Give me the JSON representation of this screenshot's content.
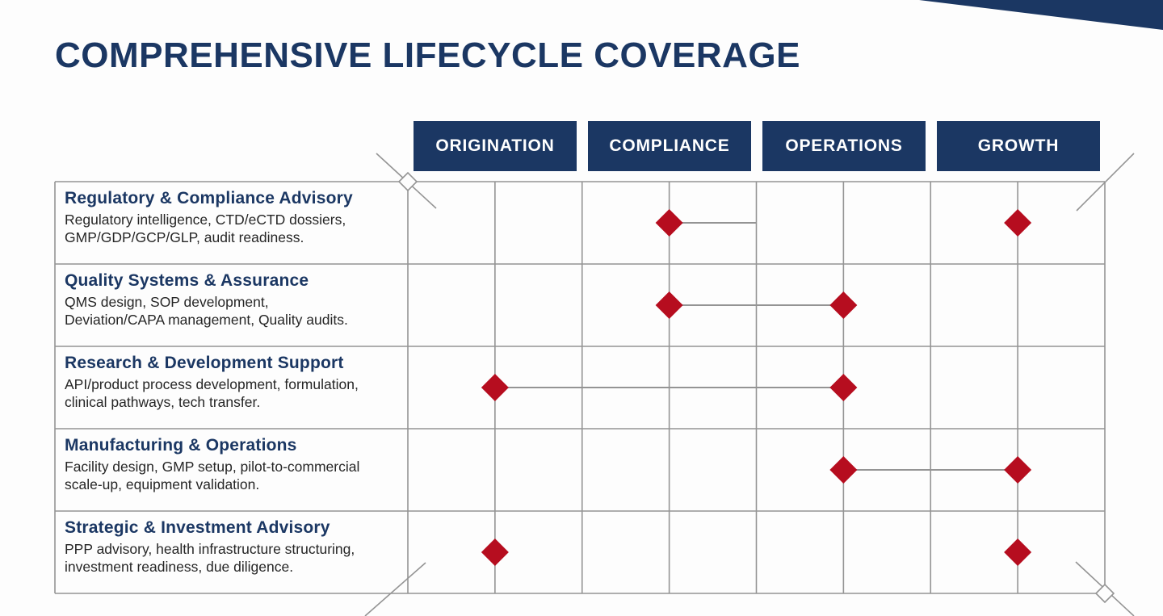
{
  "title": "COMPREHENSIVE LIFECYCLE COVERAGE",
  "columns": [
    "ORIGINATION",
    "COMPLIANCE",
    "OPERATIONS",
    "GROWTH"
  ],
  "rows": [
    {
      "title": "Regulatory & Compliance Advisory",
      "description": "Regulatory intelligence, CTD/eCTD dossiers,\nGMP/GDP/GCP/GLP, audit readiness.",
      "markers": [
        1,
        3
      ]
    },
    {
      "title": "Quality Systems & Assurance",
      "description": "QMS design, SOP development,\nDeviation/CAPA management, Quality audits.",
      "markers": [
        1,
        2
      ]
    },
    {
      "title": "Research & Development Support",
      "description": "API/product process development, formulation,\nclinical pathways, tech transfer.",
      "markers": [
        0,
        2
      ]
    },
    {
      "title": "Manufacturing & Operations",
      "description": "Facility design, GMP setup, pilot-to-commercial\nscale-up, equipment validation.",
      "markers": [
        2,
        3
      ]
    },
    {
      "title": "Strategic & Investment Advisory",
      "description": "PPP advisory, health infrastructure structuring,\ninvestment readiness, due diligence.",
      "markers": [
        0,
        3
      ]
    }
  ],
  "connectors": [
    {
      "row": 0,
      "from": 1,
      "to": 1.5
    },
    {
      "row": 1,
      "from": 1,
      "to": 2
    },
    {
      "row": 2,
      "from": 0,
      "to": 2
    },
    {
      "row": 3,
      "from": 2,
      "to": 3
    }
  ],
  "colors": {
    "navy": "#1b3763",
    "red": "#b60d1f",
    "grid": "#949494",
    "text": "#262626"
  }
}
